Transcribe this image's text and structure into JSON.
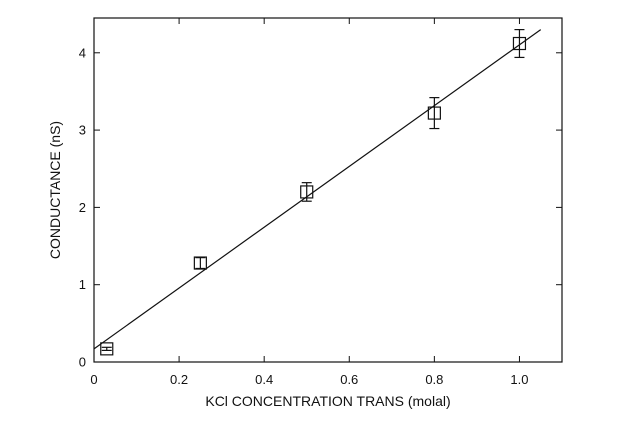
{
  "chart_data": {
    "type": "scatter",
    "title": "",
    "xlabel": "KCl CONCENTRATION TRANS (molal)",
    "ylabel": "CONDUCTANCE (nS)",
    "xlim": [
      0,
      1.1
    ],
    "ylim": [
      0,
      4.45
    ],
    "xticks": [
      0,
      0.2,
      0.4,
      0.6,
      0.8,
      1.0
    ],
    "xtick_labels": [
      "0",
      "0.2",
      "0.4",
      "0.6",
      "0.8",
      "1.0"
    ],
    "yticks": [
      0,
      1,
      2,
      3,
      4
    ],
    "ytick_labels": [
      "0",
      "1",
      "2",
      "3",
      "4"
    ],
    "grid": false,
    "series": [
      {
        "marker": "square",
        "x": [
          0.03,
          0.25,
          0.5,
          0.8,
          1.0
        ],
        "y": [
          0.17,
          1.28,
          2.2,
          3.22,
          4.12
        ],
        "error": [
          0.02,
          0.07,
          0.12,
          0.2,
          0.18
        ]
      }
    ],
    "fit_line": {
      "style": "solid",
      "x": [
        0.0,
        1.05
      ],
      "y": [
        0.17,
        4.3
      ]
    }
  }
}
